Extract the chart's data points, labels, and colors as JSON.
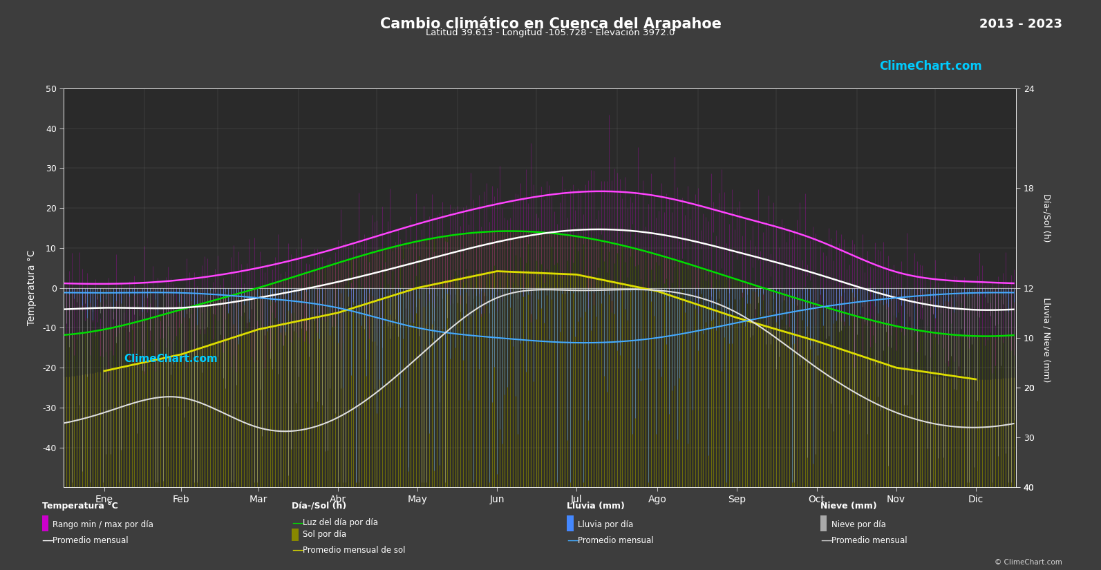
{
  "title": "Cambio climático en Cuenca del Arapahoe",
  "subtitle": "Latitud 39.613 - Longitud -105.728 - Elevación 3972.0",
  "year_range": "2013 - 2023",
  "bg_color": "#3d3d3d",
  "plot_bg_color": "#2a2a2a",
  "months": [
    "Ene",
    "Feb",
    "Mar",
    "Abr",
    "May",
    "Jun",
    "Jul",
    "Ago",
    "Sep",
    "Oct",
    "Nov",
    "Dic"
  ],
  "temp_ylim": [
    -50,
    50
  ],
  "sun_ylim": [
    0,
    24
  ],
  "precip_ylim_mm": [
    40,
    0
  ],
  "temp_max_monthly": [
    1.0,
    2.0,
    5.0,
    10.0,
    16.0,
    21.0,
    24.0,
    23.0,
    18.0,
    12.0,
    4.0,
    1.5
  ],
  "temp_min_monthly": [
    -13.0,
    -12.5,
    -10.0,
    -6.5,
    -1.5,
    2.5,
    5.0,
    4.0,
    0.5,
    -4.0,
    -9.5,
    -12.5
  ],
  "temp_avg_monthly": [
    -5.0,
    -5.0,
    -2.5,
    1.5,
    6.5,
    11.5,
    14.5,
    13.5,
    9.0,
    3.5,
    -2.5,
    -5.5
  ],
  "daylight_monthly": [
    9.5,
    10.7,
    12.0,
    13.5,
    14.8,
    15.4,
    15.1,
    14.0,
    12.5,
    11.0,
    9.7,
    9.1
  ],
  "sunshine_monthly": [
    7.0,
    8.0,
    9.5,
    10.5,
    12.0,
    13.0,
    12.8,
    11.8,
    10.2,
    8.8,
    7.2,
    6.5
  ],
  "rain_monthly_mm": [
    1.0,
    1.0,
    2.0,
    4.0,
    8.0,
    10.0,
    11.0,
    10.0,
    7.0,
    4.0,
    2.0,
    1.0
  ],
  "snow_monthly_mm": [
    25.0,
    22.0,
    28.0,
    26.0,
    14.0,
    2.0,
    0.5,
    0.5,
    5.0,
    16.0,
    25.0,
    28.0
  ],
  "watermark_top": "ClimeChart.com",
  "watermark_bot": "ClimeChart.com",
  "copyright": "© ClimeChart.com",
  "legend_temp_title": "Temperatura °C",
  "legend_sun_title": "Día-/Sol (h)",
  "legend_rain_title": "Lluvia (mm)",
  "legend_snow_title": "Nieve (mm)",
  "legend_items": {
    "rango_dia": "Rango min / max por día",
    "prom_mensual_temp": "Promedio mensual",
    "luz_dia": "Luz del día por día",
    "sol_dia": "Sol por día",
    "prom_sol": "Promedio mensual de sol",
    "lluvia_dia": "Lluvia por día",
    "prom_lluvia": "Promedio mensual",
    "nieve_dia": "Nieve por día",
    "prom_nieve": "Promedio mensual"
  }
}
